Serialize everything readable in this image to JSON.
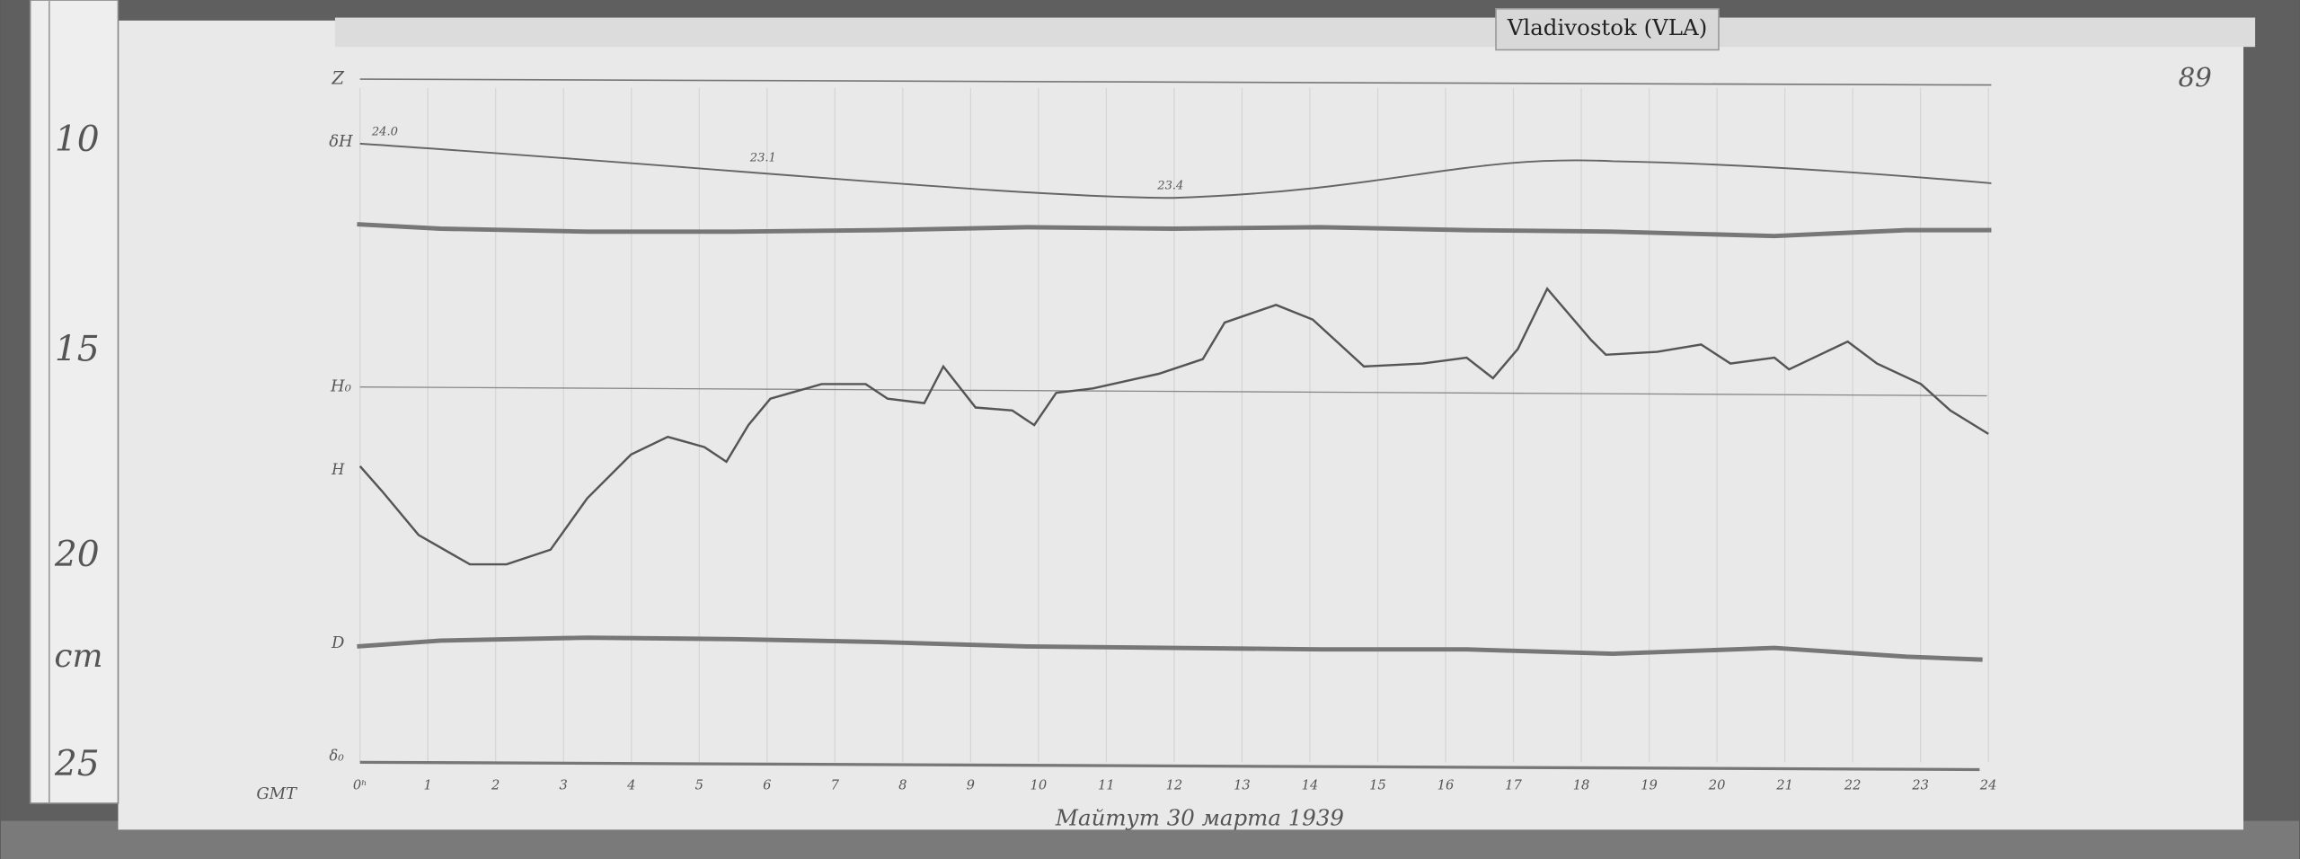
{
  "header": {
    "label": "Vladivostok (VLA)",
    "sheet_number": "89"
  },
  "ruler": {
    "labels": [
      "10",
      "15",
      "20",
      "25"
    ],
    "unit": "cm"
  },
  "trace_labels": [
    "Z",
    "δH",
    "H₀",
    "H",
    "D",
    "δ₀"
  ],
  "annotations": [
    "24.0",
    "23.1",
    "23.4"
  ],
  "time_axis": {
    "unit": "GMT",
    "labels": [
      "0ʰ",
      "1",
      "2",
      "3",
      "4",
      "5",
      "6",
      "7",
      "8",
      "9",
      "10",
      "11",
      "12",
      "13",
      "14",
      "15",
      "16",
      "17",
      "18",
      "19",
      "20",
      "21",
      "22",
      "23",
      "24"
    ]
  },
  "signature": "Майтут 30 марта 1939"
}
